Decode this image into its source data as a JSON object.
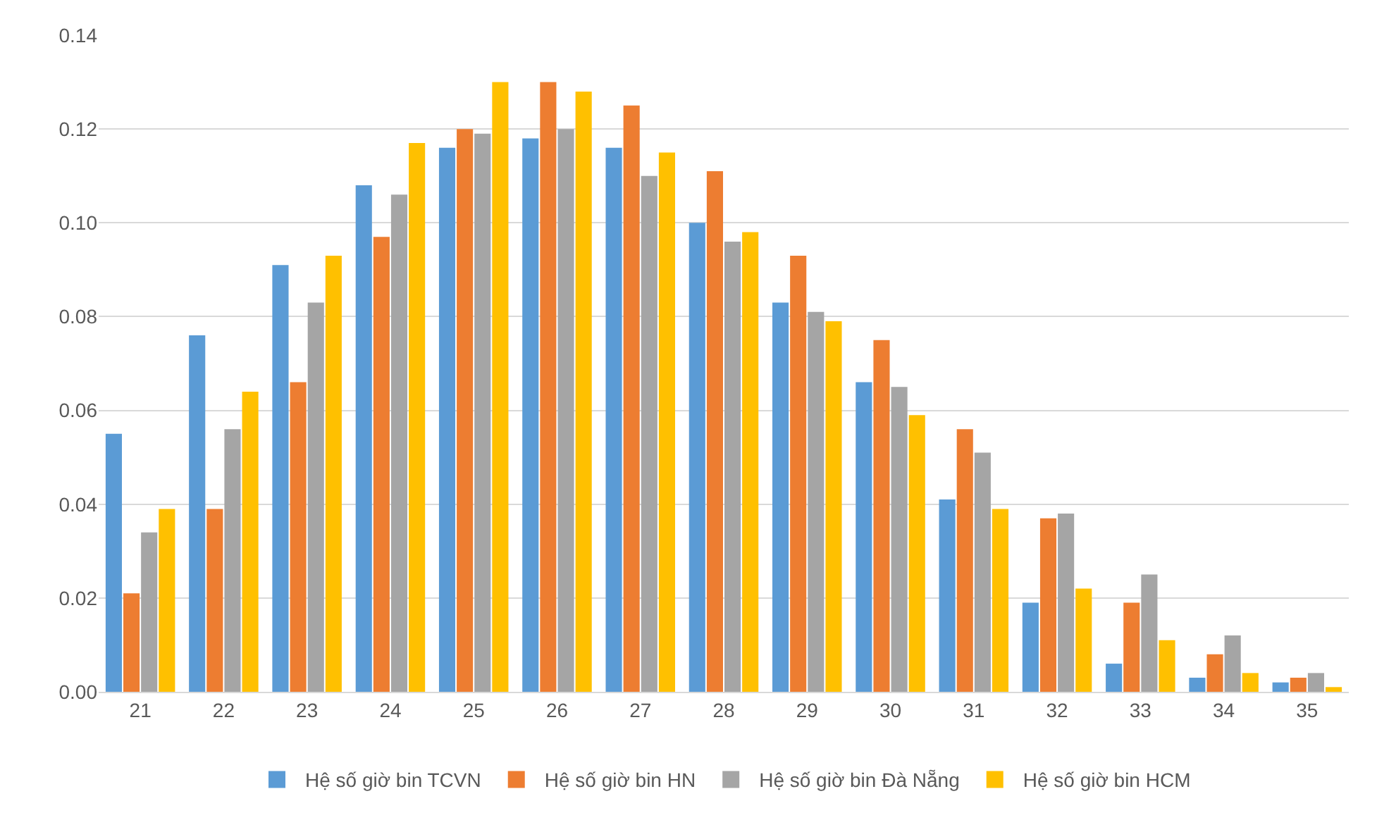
{
  "chart_data": {
    "type": "bar",
    "categories": [
      "21",
      "22",
      "23",
      "24",
      "25",
      "26",
      "27",
      "28",
      "29",
      "30",
      "31",
      "32",
      "33",
      "34",
      "35"
    ],
    "series": [
      {
        "name": "Hệ số giờ bin TCVN",
        "color": "#5b9bd5",
        "values": [
          0.055,
          0.076,
          0.091,
          0.108,
          0.116,
          0.118,
          0.116,
          0.1,
          0.083,
          0.066,
          0.041,
          0.019,
          0.006,
          0.003,
          0.002
        ]
      },
      {
        "name": "Hệ số giờ bin HN",
        "color": "#ed7d31",
        "values": [
          0.021,
          0.039,
          0.066,
          0.097,
          0.12,
          0.13,
          0.125,
          0.111,
          0.093,
          0.075,
          0.056,
          0.037,
          0.019,
          0.008,
          0.003
        ]
      },
      {
        "name": "Hệ số giờ bin Đà Nẵng",
        "color": "#a5a5a5",
        "values": [
          0.034,
          0.056,
          0.083,
          0.106,
          0.119,
          0.12,
          0.11,
          0.096,
          0.081,
          0.065,
          0.051,
          0.038,
          0.025,
          0.012,
          0.004
        ]
      },
      {
        "name": "Hệ số giờ bin HCM",
        "color": "#ffc000",
        "values": [
          0.039,
          0.064,
          0.093,
          0.117,
          0.13,
          0.128,
          0.115,
          0.098,
          0.079,
          0.059,
          0.039,
          0.022,
          0.011,
          0.004,
          0.001
        ]
      }
    ],
    "ylim": [
      0,
      0.14
    ],
    "yticks": [
      {
        "value": 0,
        "label": "0.00"
      },
      {
        "value": 0.02,
        "label": "0.02"
      },
      {
        "value": 0.04,
        "label": "0.04"
      },
      {
        "value": 0.06,
        "label": "0.06"
      },
      {
        "value": 0.08,
        "label": "0.08"
      },
      {
        "value": 0.1,
        "label": "0.10"
      },
      {
        "value": 0.12,
        "label": "0.12"
      },
      {
        "value": 0.14,
        "label": "0.14"
      }
    ],
    "grid": "y",
    "legend": "bottom"
  }
}
